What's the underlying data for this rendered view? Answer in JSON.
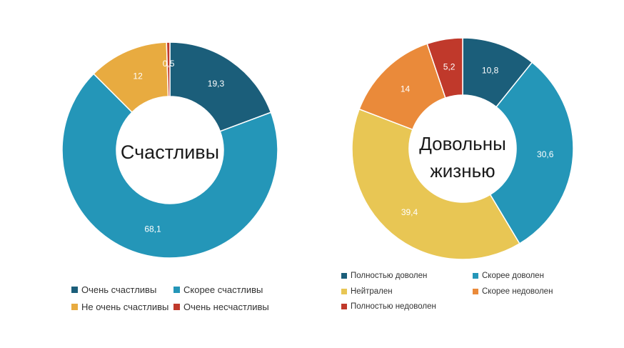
{
  "chart_data": [
    {
      "type": "pie",
      "title": "",
      "center_label": [
        "Счастливы"
      ],
      "categories": [
        "Очень счастливы",
        "Скорее счастливы",
        "Не очень счастливы",
        "Очень несчастливы"
      ],
      "values": [
        19.3,
        68.1,
        12,
        0.5
      ],
      "value_labels": [
        "19,3",
        "68,1",
        "12",
        "0,5"
      ],
      "colors": [
        "#1b5e7a",
        "#2496b8",
        "#e8ab40",
        "#c0392b"
      ],
      "legend_position": "bottom"
    },
    {
      "type": "pie",
      "title": "",
      "center_label": [
        "Довольны",
        "жизнью"
      ],
      "categories": [
        "Полностью доволен",
        "Скорее доволен",
        "Нейтрален",
        "Скорее недоволен",
        "Полностью недоволен"
      ],
      "values": [
        10.8,
        30.6,
        39.4,
        14,
        5.2
      ],
      "value_labels": [
        "10,8",
        "30,6",
        "39,4",
        "14",
        "5,2"
      ],
      "colors": [
        "#1b5e7a",
        "#2496b8",
        "#e8c654",
        "#ea8a3a",
        "#c0392b"
      ],
      "legend_position": "bottom"
    }
  ]
}
